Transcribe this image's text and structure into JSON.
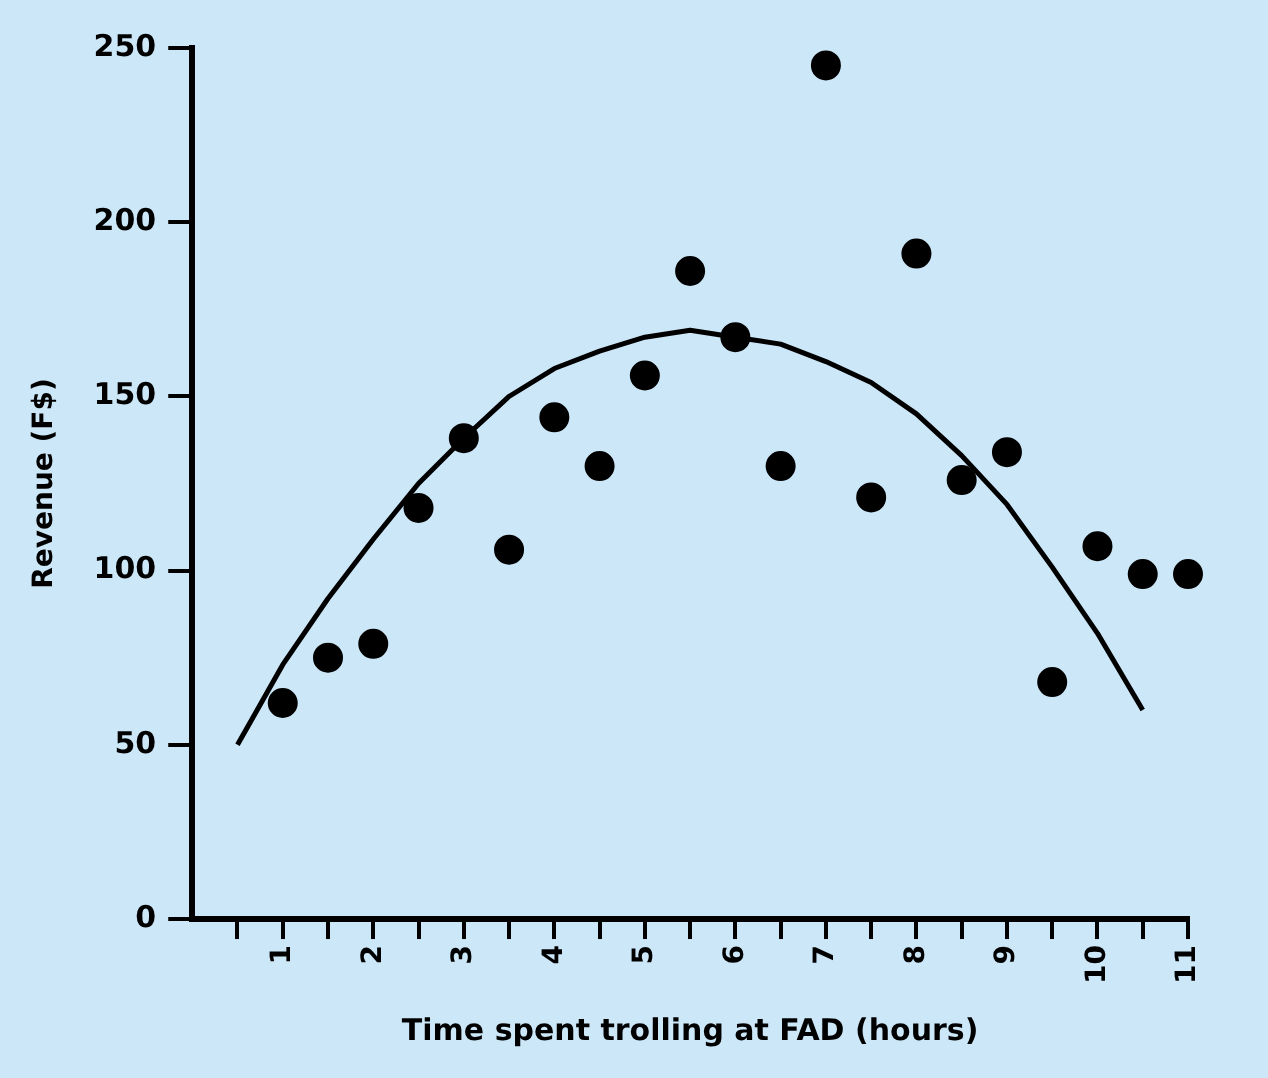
{
  "chart_data": {
    "type": "scatter",
    "xlabel": "Time spent trolling at FAD (hours)",
    "ylabel": "Revenue (F$)",
    "xlim": [
      0,
      11
    ],
    "ylim": [
      0,
      250
    ],
    "xticks": [
      {
        "value": 0.5,
        "label": null
      },
      1,
      {
        "value": 1.5,
        "label": null
      },
      2,
      {
        "value": 2.5,
        "label": null
      },
      3,
      {
        "value": 3.5,
        "label": null
      },
      4,
      {
        "value": 4.5,
        "label": null
      },
      5,
      {
        "value": 5.5,
        "label": null
      },
      6,
      {
        "value": 6.5,
        "label": null
      },
      7,
      {
        "value": 7.5,
        "label": null
      },
      8,
      {
        "value": 8.5,
        "label": null
      },
      9,
      {
        "value": 9.5,
        "label": null
      },
      10,
      {
        "value": 10.5,
        "label": null
      },
      11
    ],
    "yticks": [
      0,
      50,
      100,
      150,
      200,
      250
    ],
    "grid": false,
    "legend": false,
    "marker": "circle",
    "series": [
      {
        "type": "scatter",
        "color": "#000000",
        "x": [
          1,
          1.5,
          2,
          2.5,
          3,
          3.5,
          4,
          4.5,
          5,
          5.5,
          6,
          6.5,
          7,
          7.5,
          8,
          8.5,
          9,
          9.5,
          10,
          10.5,
          11
        ],
        "values": [
          62,
          75,
          79,
          118,
          138,
          106,
          144,
          130,
          156,
          186,
          167,
          130,
          245,
          121,
          191,
          126,
          134,
          68,
          107,
          99,
          99
        ]
      },
      {
        "type": "line",
        "color": "#000000",
        "marker": "none",
        "line_style": "solid",
        "x": [
          0.5,
          1,
          1.5,
          2,
          2.5,
          3,
          3.5,
          4,
          4.5,
          5,
          5.5,
          6,
          6.5,
          7,
          7.5,
          8,
          8.5,
          9,
          9.5,
          10,
          10.5
        ],
        "values": [
          50,
          73,
          92,
          109,
          125,
          138,
          150,
          158,
          163,
          167,
          169,
          167,
          165,
          160,
          154,
          145,
          133,
          119,
          101,
          82,
          60
        ]
      }
    ]
  }
}
